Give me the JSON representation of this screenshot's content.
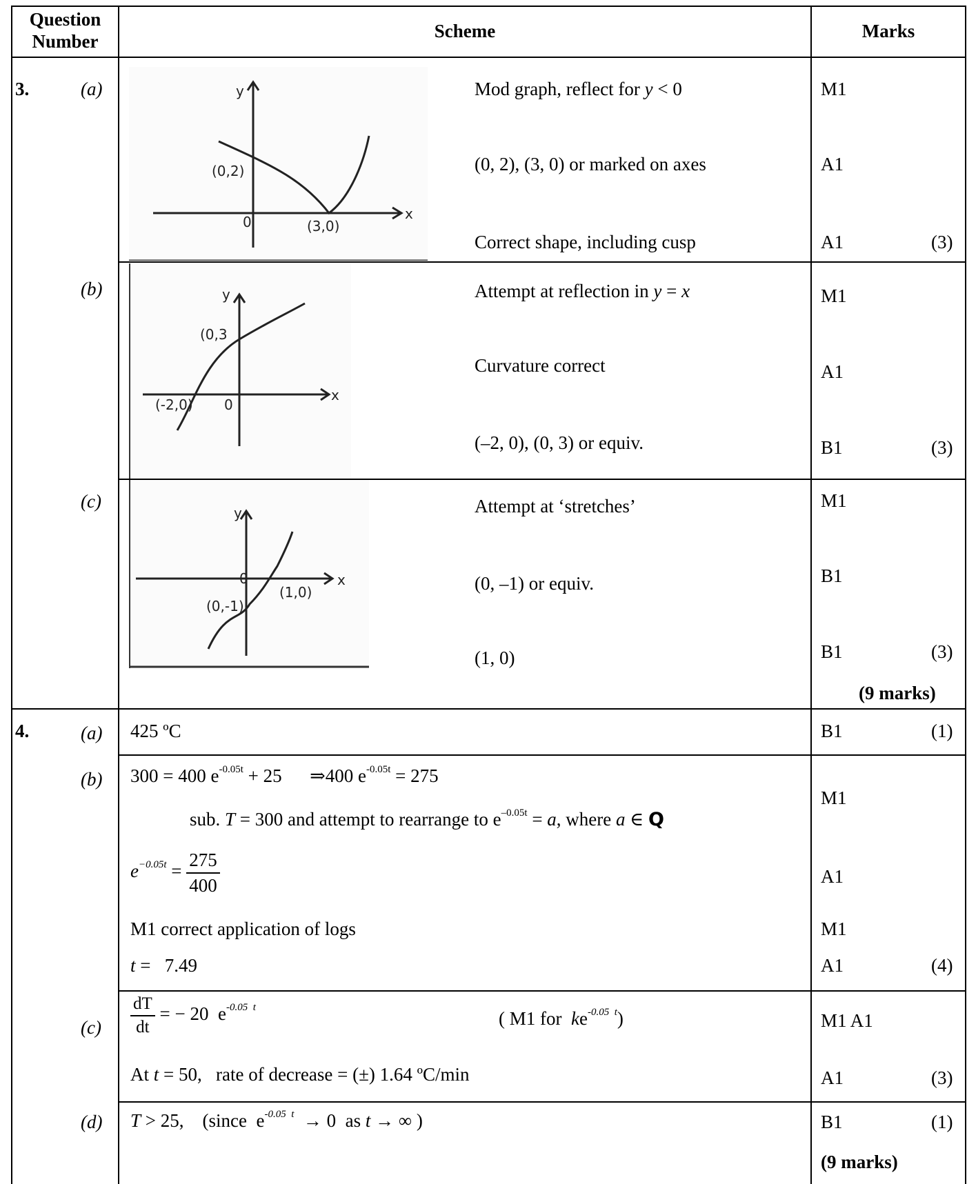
{
  "header": {
    "question_number": "Question Number",
    "scheme": "Scheme",
    "marks": "Marks"
  },
  "q3": {
    "number": "3.",
    "a": {
      "part": "(a)",
      "sketch_labels": {
        "y": "y",
        "x": "x",
        "p1": "(0,2)",
        "p2": "(3,0)",
        "o": "0"
      },
      "rows": [
        {
          "text": "Mod graph, reflect for ",
          "var": "y",
          "tail": " < 0",
          "mark": "M1"
        },
        {
          "text": "(0, 2), (3, 0) or marked on axes",
          "mark": "A1"
        },
        {
          "text": "Correct shape, including cusp",
          "mark": "A1",
          "total": "(3)"
        }
      ]
    },
    "b": {
      "part": "(b)",
      "sketch_labels": {
        "y": "y",
        "x": "x",
        "p1": "(0,3",
        "p2": "(-2,0)",
        "o": "0"
      },
      "rows": [
        {
          "text": "Attempt at reflection in ",
          "var": "y",
          "tail": " = ",
          "var2": "x",
          "mark": "M1"
        },
        {
          "text": "Curvature correct",
          "mark": "A1"
        },
        {
          "text": "(–2, 0),  (0, 3)   or equiv.",
          "mark": "B1",
          "total": "(3)"
        }
      ]
    },
    "c": {
      "part": "(c)",
      "sketch_labels": {
        "y": "y",
        "x": "x",
        "p1": "(0,-1)",
        "p2": "(1,0)",
        "o": "0"
      },
      "rows": [
        {
          "text": "Attempt at ‘stretches’",
          "mark": "M1"
        },
        {
          "text": "(0, –1) or equiv.",
          "mark": "B1"
        },
        {
          "text": "(1,  0)",
          "mark": "B1",
          "total": "(3)"
        }
      ]
    },
    "total": "(9 marks)"
  },
  "q4": {
    "number": "4.",
    "a": {
      "part": "(a)",
      "text": "425 ºC",
      "mark": "B1",
      "total": "(1)"
    },
    "b": {
      "part": "(b)",
      "line1_lhs": "300 = 400 e",
      "line1_exp": "-0.05t",
      "line1_mid": " + 25",
      "line1_arrow": "⇒400 e",
      "line1_exp2": "-0.05t",
      "line1_rhs": " = 275",
      "line2_pre": "sub. ",
      "line2_T": "T",
      "line2_mid": " = 300 and attempt to rearrange to e",
      "line2_exp": "–0.05t",
      "line2_eq": " = ",
      "line2_a": "a",
      "line2_where": ", where ",
      "line2_a2": "a",
      "line2_in": " ∈ ",
      "line2_Q": "Q",
      "frac_lhs": "e",
      "frac_exp": "−0.05t",
      "frac_num": "275",
      "frac_den": "400",
      "logs": "M1 correct application of logs",
      "t_var": "t",
      "t_val": " =   7.49",
      "marks": [
        "M1",
        "A1",
        "M1",
        "A1"
      ],
      "total": "(4)"
    },
    "c": {
      "part": "(c)",
      "dT": "dT",
      "dt": "dt",
      "rhs": " = − 20  e",
      "rhs_exp": "-0.05  t",
      "note_pre": "( M1 for  ",
      "note_k": "k",
      "note_e": "e",
      "note_exp": "-0.05  t",
      "note_post": ")",
      "rate_pre": "At ",
      "rate_t": "t",
      "rate_mid": " = 50,   rate of decrease = (±) 1.64 ºC/min",
      "marks": [
        "M1 A1",
        "A1"
      ],
      "total": "(3)"
    },
    "d": {
      "part": "(d)",
      "T": "T",
      "text1": " > 25,    (since  e",
      "exp": "-0.05  t",
      "text2": "  → 0  as ",
      "t": "t",
      "text3": " → ∞ )",
      "mark": "B1",
      "total": "(1)"
    },
    "total": "(9 marks)"
  }
}
